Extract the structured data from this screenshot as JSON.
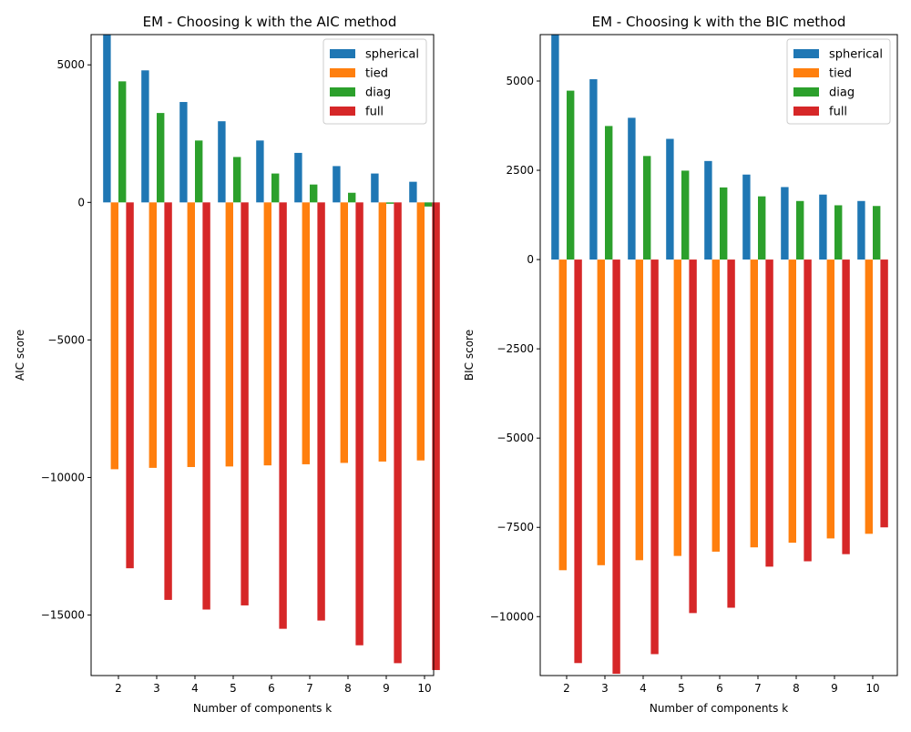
{
  "chart_data": [
    {
      "type": "bar",
      "title": "EM - Choosing k with the AIC method",
      "xlabel": "Number of components k",
      "ylabel": "AIC score",
      "categories": [
        "2",
        "3",
        "4",
        "5",
        "6",
        "7",
        "8",
        "9",
        "10"
      ],
      "ylim": [
        -17200,
        6100
      ],
      "yticks": [
        5000,
        0,
        -5000,
        -10000,
        -15000
      ],
      "ytick_labels": [
        "5000",
        "0",
        "−5000",
        "−10000",
        "−15000"
      ],
      "legend": "top-right",
      "series": [
        {
          "name": "spherical",
          "color": "#1f77b4",
          "values": [
            6100,
            4800,
            3650,
            2950,
            2250,
            1800,
            1320,
            1050,
            750
          ]
        },
        {
          "name": "tied",
          "color": "#ff7f0e",
          "values": [
            -9700,
            -9650,
            -9620,
            -9600,
            -9560,
            -9520,
            -9470,
            -9420,
            -9380
          ]
        },
        {
          "name": "diag",
          "color": "#2ca02c",
          "values": [
            4400,
            3250,
            2250,
            1650,
            1050,
            650,
            350,
            -50,
            -150
          ]
        },
        {
          "name": "full",
          "color": "#d62728",
          "values": [
            -13300,
            -14450,
            -14800,
            -14650,
            -15500,
            -15200,
            -16100,
            -16750,
            -17000
          ]
        }
      ]
    },
    {
      "type": "bar",
      "title": "EM - Choosing k with the BIC method",
      "xlabel": "Number of components k",
      "ylabel": "BIC score",
      "categories": [
        "2",
        "3",
        "4",
        "5",
        "6",
        "7",
        "8",
        "9",
        "10"
      ],
      "ylim": [
        -11650,
        6300
      ],
      "yticks": [
        5000,
        2500,
        0,
        -2500,
        -5000,
        -7500,
        -10000
      ],
      "ytick_labels": [
        "5000",
        "2500",
        "0",
        "−2500",
        "−5000",
        "−7500",
        "−10000"
      ],
      "legend": "top-right",
      "series": [
        {
          "name": "spherical",
          "color": "#1f77b4",
          "values": [
            6300,
            5050,
            3970,
            3380,
            2760,
            2380,
            2030,
            1820,
            1640
          ]
        },
        {
          "name": "tied",
          "color": "#ff7f0e",
          "values": [
            -8700,
            -8560,
            -8420,
            -8300,
            -8180,
            -8060,
            -7930,
            -7810,
            -7680
          ]
        },
        {
          "name": "diag",
          "color": "#2ca02c",
          "values": [
            4730,
            3740,
            2900,
            2490,
            2020,
            1770,
            1640,
            1520,
            1500
          ]
        },
        {
          "name": "full",
          "color": "#d62728",
          "values": [
            -11300,
            -11600,
            -11050,
            -9900,
            -9750,
            -8600,
            -8450,
            -8250,
            -7500
          ]
        }
      ]
    }
  ]
}
